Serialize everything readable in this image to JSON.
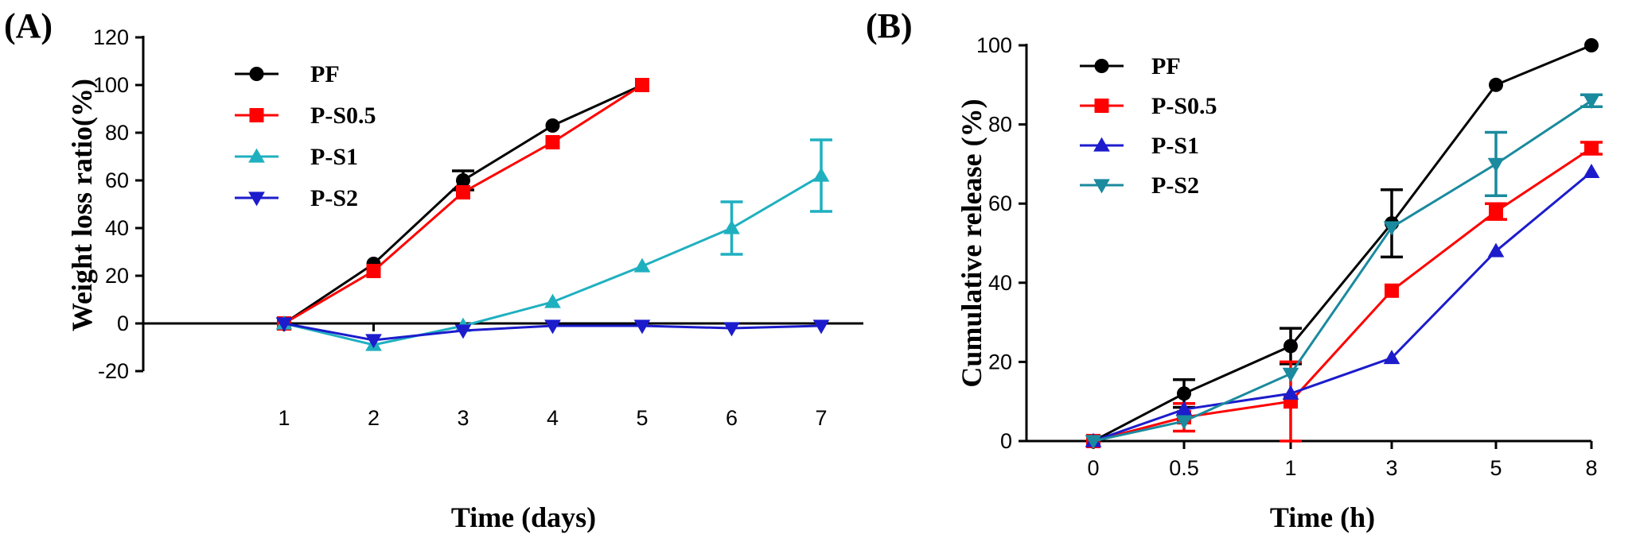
{
  "chart_data": [
    {
      "panel_label": "(A)",
      "type": "line",
      "xlabel": "Time (days)",
      "ylabel": "Weight loss ratio(%)",
      "x_ticks": [
        "1",
        "2",
        "3",
        "4",
        "5",
        "6",
        "7"
      ],
      "y_ticks": [
        "-20",
        "0",
        "20",
        "40",
        "60",
        "80",
        "100",
        "120"
      ],
      "ylim": [
        -20,
        120
      ],
      "xlim": [
        0,
        7.7
      ],
      "legend_position": "top-left",
      "series": [
        {
          "name": "PF",
          "color": "#000000",
          "marker": "circle",
          "x": [
            1,
            2,
            3,
            4,
            5
          ],
          "y": [
            0,
            25,
            60,
            83,
            100
          ],
          "err": [
            0,
            0,
            4,
            0,
            0
          ]
        },
        {
          "name": "P-S0.5",
          "color": "#ff0000",
          "marker": "square",
          "x": [
            1,
            2,
            3,
            4,
            5
          ],
          "y": [
            0,
            22,
            55,
            76,
            100
          ],
          "err": [
            0,
            0,
            0,
            0,
            0
          ]
        },
        {
          "name": "P-S1",
          "color": "#1fb0c0",
          "marker": "triangle-up",
          "x": [
            1,
            2,
            3,
            4,
            5,
            6,
            7
          ],
          "y": [
            0,
            -9,
            -1,
            9,
            24,
            40,
            62
          ],
          "err": [
            0,
            0,
            0,
            0,
            0,
            11,
            15
          ]
        },
        {
          "name": "P-S2",
          "color": "#1c1ccc",
          "marker": "triangle-down",
          "x": [
            1,
            2,
            3,
            4,
            5,
            6,
            7
          ],
          "y": [
            0,
            -7,
            -3,
            -1,
            -1,
            -2,
            -1
          ],
          "err": [
            0,
            0,
            0,
            0,
            0,
            0,
            0
          ]
        }
      ]
    },
    {
      "panel_label": "(B)",
      "type": "line",
      "xlabel": "Time (h)",
      "ylabel": "Cumulative release (%)",
      "x_ticks": [
        "0",
        "0.5",
        "1",
        "3",
        "5",
        "8"
      ],
      "y_ticks": [
        "0",
        "20",
        "40",
        "60",
        "80",
        "100"
      ],
      "ylim": [
        0,
        100
      ],
      "x_scale": "categorical",
      "legend_position": "top-left",
      "series": [
        {
          "name": "PF",
          "color": "#000000",
          "marker": "circle",
          "x": [
            "0",
            "0.5",
            "1",
            "3",
            "5",
            "8"
          ],
          "y": [
            0,
            12,
            24,
            55,
            90,
            100
          ],
          "err": [
            0,
            3.5,
            4.5,
            8.5,
            0,
            0
          ]
        },
        {
          "name": "P-S0.5",
          "color": "#ff0000",
          "marker": "square",
          "x": [
            "0",
            "0.5",
            "1",
            "3",
            "5",
            "8"
          ],
          "y": [
            0,
            6,
            10,
            38,
            58,
            74
          ],
          "err": [
            0,
            3.5,
            10,
            0,
            2,
            1.5
          ]
        },
        {
          "name": "P-S1",
          "color": "#1c1ccc",
          "marker": "triangle-up",
          "x": [
            "0",
            "0.5",
            "1",
            "3",
            "5",
            "8"
          ],
          "y": [
            0,
            8,
            12,
            21,
            48,
            68
          ],
          "err": [
            0,
            0,
            0,
            0,
            0,
            0
          ]
        },
        {
          "name": "P-S2",
          "color": "#1a8a9e",
          "marker": "triangle-down",
          "x": [
            "0",
            "0.5",
            "1",
            "3",
            "5",
            "8"
          ],
          "y": [
            0,
            5,
            17,
            54,
            70,
            86
          ],
          "err": [
            0,
            0,
            0,
            0,
            8,
            1.5
          ]
        }
      ]
    }
  ]
}
